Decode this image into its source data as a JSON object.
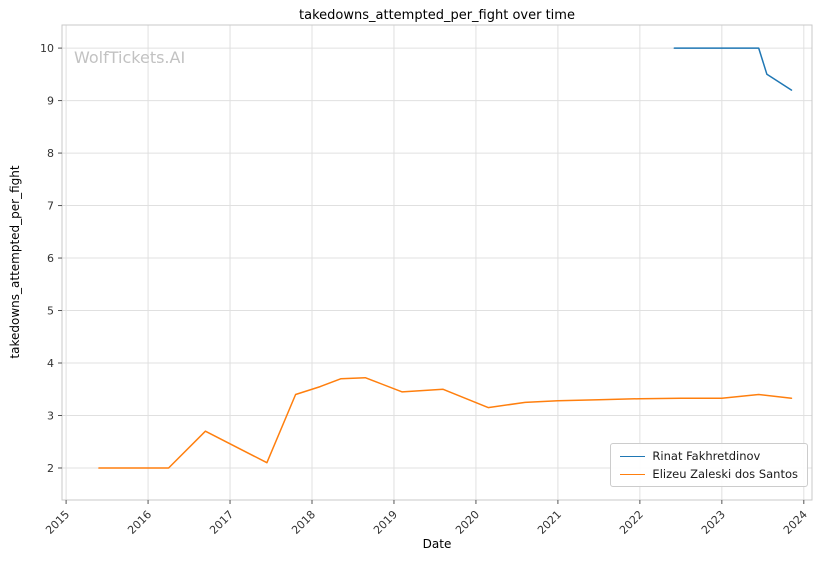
{
  "page": {
    "background": "#ffffff",
    "watermark": "WolfTickets.AI"
  },
  "chart_data": {
    "type": "line",
    "title": "takedowns_attempted_per_fight over time",
    "xlabel": "Date",
    "ylabel": "takedowns_attempted_per_fight",
    "grid": true,
    "legend_position": "lower right",
    "xlim": [
      2014.95,
      2024.1
    ],
    "ylim": [
      1.39,
      10.44
    ],
    "x_ticks": [
      2015,
      2016,
      2017,
      2018,
      2019,
      2020,
      2021,
      2022,
      2023,
      2024
    ],
    "y_ticks": [
      2,
      3,
      4,
      5,
      6,
      7,
      8,
      9,
      10
    ],
    "colors": {
      "grid": "#e0e0e0",
      "frame": "#c9c9c9",
      "tick": "#555555",
      "tick_label": "#333333"
    },
    "series": [
      {
        "name": "Rinat Fakhretdinov",
        "color": "#1f77b4",
        "x": [
          2022.42,
          2023.0,
          2023.45,
          2023.55,
          2023.85
        ],
        "y": [
          10.0,
          10.0,
          10.0,
          9.5,
          9.2
        ]
      },
      {
        "name": "Elizeu Zaleski dos Santos",
        "color": "#ff7f0e",
        "x": [
          2015.4,
          2015.8,
          2016.25,
          2016.7,
          2017.45,
          2017.8,
          2018.1,
          2018.35,
          2018.65,
          2019.1,
          2019.6,
          2020.15,
          2020.6,
          2021.0,
          2021.5,
          2022.0,
          2022.5,
          2023.0,
          2023.45,
          2023.85
        ],
        "y": [
          2.0,
          2.0,
          2.0,
          2.7,
          2.1,
          3.4,
          3.55,
          3.7,
          3.72,
          3.45,
          3.5,
          3.15,
          3.25,
          3.28,
          3.3,
          3.32,
          3.33,
          3.33,
          3.4,
          3.33
        ]
      }
    ]
  }
}
